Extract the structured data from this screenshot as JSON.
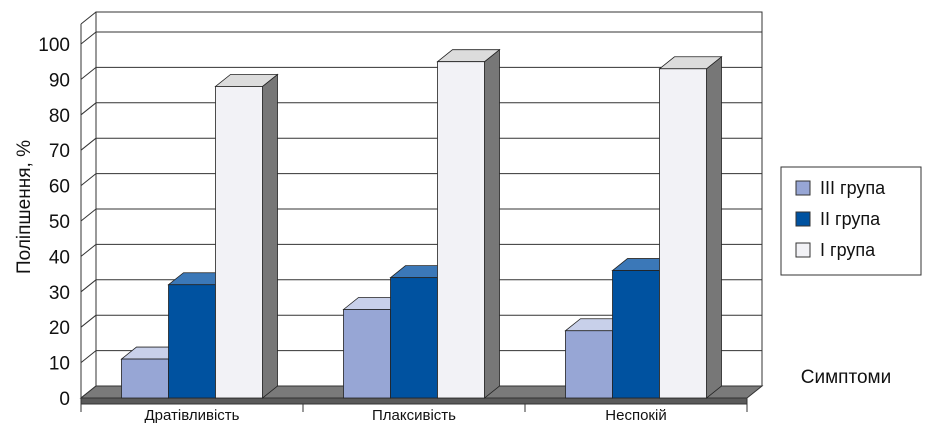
{
  "chart_data": {
    "type": "bar",
    "categories": [
      "Дратівливість",
      "Плаксивість",
      "Неспокій"
    ],
    "series": [
      {
        "name": "III група",
        "color": "#97a6d5",
        "values": [
          11,
          25,
          19
        ]
      },
      {
        "name": "II група",
        "color": "#0052a0",
        "values": [
          32,
          34,
          36
        ]
      },
      {
        "name": "I група",
        "color": "#f2f2f6",
        "values": [
          88,
          95,
          93
        ]
      }
    ],
    "title": "",
    "xlabel": "Симптоми",
    "ylabel": "Поліпшення, %",
    "ylim": [
      0,
      100
    ],
    "yticks": [
      "0",
      "10",
      "20",
      "30",
      "40",
      "50",
      "60",
      "70",
      "80",
      "90",
      "100"
    ],
    "grid": true,
    "legend_position": "right",
    "legend_order": [
      "III група",
      "II група",
      "I група"
    ]
  }
}
